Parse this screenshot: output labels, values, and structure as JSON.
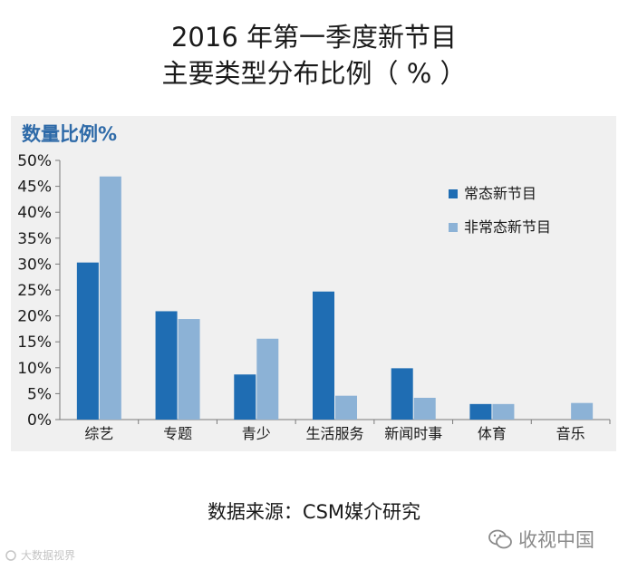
{
  "title_line1": "2016 年第一季度新节目",
  "title_line2": "主要类型分布比例（ % ）",
  "panel_label": "数量比例%",
  "source": "数据来源：CSM媒介研究",
  "watermark_right": "收视中国",
  "watermark_left": "大数据视界",
  "colors": {
    "series_regular": "#1f6db3",
    "series_irregular": "#8cb2d6",
    "panel_bg": "#f0f0f0",
    "label_blue": "#2e6aa8"
  },
  "chart_data": {
    "type": "bar",
    "categories": [
      "综艺",
      "专题",
      "青少",
      "生活服务",
      "新闻时事",
      "体育",
      "音乐"
    ],
    "series": [
      {
        "name": "常态新节目",
        "values": [
          30.3,
          20.9,
          8.7,
          24.7,
          9.9,
          3.0,
          0
        ]
      },
      {
        "name": "非常态新节目",
        "values": [
          46.9,
          19.4,
          15.6,
          4.6,
          4.2,
          3.0,
          3.2
        ]
      }
    ],
    "ylim": [
      0,
      50
    ],
    "yticks": [
      "0%",
      "5%",
      "10%",
      "15%",
      "20%",
      "25%",
      "30%",
      "35%",
      "40%",
      "45%",
      "50%"
    ],
    "grid": false,
    "legend_position": "top-right"
  }
}
